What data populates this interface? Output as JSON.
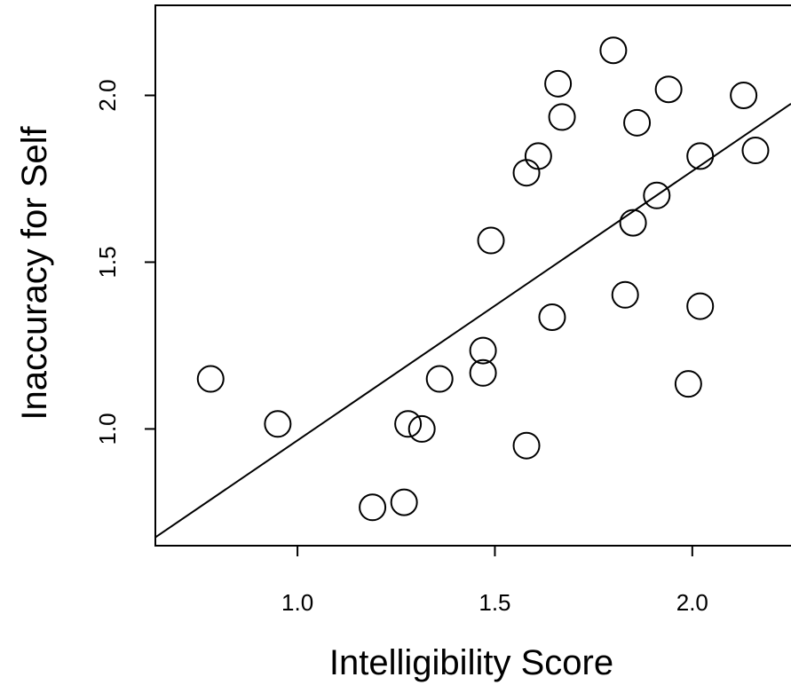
{
  "chart_data": {
    "type": "scatter",
    "title": "",
    "xlabel": "Intelligibility Score",
    "ylabel": "Inaccuracy for Self",
    "xlim": [
      0.64,
      2.25
    ],
    "ylim": [
      0.65,
      2.27
    ],
    "x_ticks": [
      1.0,
      1.5,
      2.0
    ],
    "x_tick_labels": [
      "1.0",
      "1.5",
      "2.0"
    ],
    "y_ticks": [
      1.0,
      1.5,
      2.0
    ],
    "y_tick_labels": [
      "1.0",
      "1.5",
      "2.0"
    ],
    "grid": false,
    "marker": "open-circle",
    "points": [
      {
        "x": 0.78,
        "y": 1.15
      },
      {
        "x": 0.95,
        "y": 1.015
      },
      {
        "x": 1.19,
        "y": 0.765
      },
      {
        "x": 1.27,
        "y": 0.78
      },
      {
        "x": 1.28,
        "y": 1.015
      },
      {
        "x": 1.315,
        "y": 1.0
      },
      {
        "x": 1.36,
        "y": 1.15
      },
      {
        "x": 1.47,
        "y": 1.235
      },
      {
        "x": 1.47,
        "y": 1.168
      },
      {
        "x": 1.49,
        "y": 1.565
      },
      {
        "x": 1.58,
        "y": 0.95
      },
      {
        "x": 1.58,
        "y": 1.768
      },
      {
        "x": 1.61,
        "y": 1.818
      },
      {
        "x": 1.645,
        "y": 1.335
      },
      {
        "x": 1.66,
        "y": 2.035
      },
      {
        "x": 1.67,
        "y": 1.935
      },
      {
        "x": 1.8,
        "y": 2.135
      },
      {
        "x": 1.83,
        "y": 1.402
      },
      {
        "x": 1.85,
        "y": 1.618
      },
      {
        "x": 1.86,
        "y": 1.918
      },
      {
        "x": 1.91,
        "y": 1.7
      },
      {
        "x": 1.94,
        "y": 2.018
      },
      {
        "x": 1.99,
        "y": 1.135
      },
      {
        "x": 2.02,
        "y": 1.818
      },
      {
        "x": 2.02,
        "y": 1.368
      },
      {
        "x": 2.13,
        "y": 2.0
      },
      {
        "x": 2.16,
        "y": 1.835
      }
    ],
    "fit_line": {
      "x": [
        0.64,
        2.25
      ],
      "y": [
        0.675,
        1.975
      ]
    }
  }
}
